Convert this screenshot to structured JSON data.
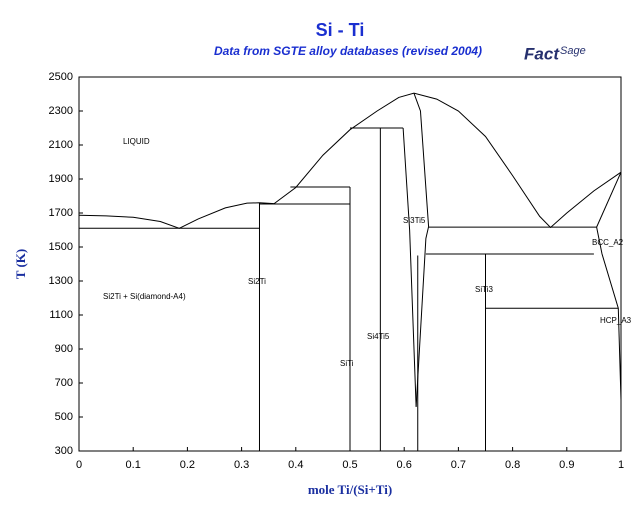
{
  "chart_data": {
    "type": "line",
    "title": "Si - Ti",
    "subtitle": "Data from SGTE alloy databases (revised 2004)",
    "logo": {
      "main": "Fact",
      "sup": "Sage"
    },
    "xlabel": "mole Ti/(Si+Ti)",
    "ylabel": "T (K)",
    "xlim": [
      0,
      1
    ],
    "ylim": [
      300,
      2500
    ],
    "xticks": [
      0,
      0.1,
      0.2,
      0.3,
      0.4,
      0.5,
      0.6,
      0.7,
      0.8,
      0.9,
      1
    ],
    "yticks": [
      300,
      500,
      700,
      900,
      1100,
      1300,
      1500,
      1700,
      1900,
      2100,
      2300,
      2500
    ],
    "color": "#000000",
    "annotations": [
      "LIQUID",
      "Si2Ti + Si(diamond-A4)",
      "Si2Ti",
      "SiTi",
      "Si4Ti5",
      "Si3Ti5",
      "SiTi3",
      "BCC_A2",
      "HCP_A3"
    ],
    "series": [
      {
        "x": [
          0,
          0.05,
          0.1,
          0.15,
          0.185,
          0.22,
          0.27,
          0.31,
          0.333,
          0.36,
          0.4,
          0.45,
          0.5,
          0.55,
          0.59,
          0.618,
          0.66,
          0.7,
          0.75,
          0.8,
          0.85,
          0.87,
          0.9,
          0.95,
          1
        ],
        "y": [
          1687,
          1683,
          1675,
          1650,
          1610,
          1665,
          1730,
          1758,
          1760,
          1755,
          1850,
          2040,
          2190,
          2300,
          2380,
          2405,
          2370,
          2300,
          2150,
          1920,
          1680,
          1615,
          1700,
          1830,
          1940
        ]
      },
      {
        "x": [
          0,
          0.333
        ],
        "y": [
          1610,
          1610
        ]
      },
      {
        "x": [
          0.333,
          0.333
        ],
        "y": [
          300,
          1760
        ]
      },
      {
        "x": [
          0.333,
          0.5
        ],
        "y": [
          1753,
          1753
        ]
      },
      {
        "x": [
          0.39,
          0.5
        ],
        "y": [
          1853,
          1853
        ]
      },
      {
        "x": [
          0.5,
          0.5
        ],
        "y": [
          300,
          1853
        ]
      },
      {
        "x": [
          0.5,
          0.598
        ],
        "y": [
          2200,
          2200
        ]
      },
      {
        "x": [
          0.556,
          0.556
        ],
        "y": [
          300,
          2200
        ]
      },
      {
        "x": [
          0.598,
          0.61,
          0.622
        ],
        "y": [
          2200,
          1600,
          560
        ]
      },
      {
        "x": [
          0.622,
          0.64,
          0.645,
          0.63,
          0.618
        ],
        "y": [
          560,
          1550,
          1620,
          2300,
          2405
        ]
      },
      {
        "x": [
          0.625,
          0.625
        ],
        "y": [
          300,
          1450
        ]
      },
      {
        "x": [
          0.645,
          0.955
        ],
        "y": [
          1617,
          1617
        ]
      },
      {
        "x": [
          0.64,
          0.95
        ],
        "y": [
          1459,
          1459
        ]
      },
      {
        "x": [
          0.75,
          0.75
        ],
        "y": [
          300,
          1459
        ]
      },
      {
        "x": [
          0.75,
          0.995
        ],
        "y": [
          1140,
          1140
        ]
      },
      {
        "x": [
          0.955,
          0.965,
          0.995,
          1
        ],
        "y": [
          1617,
          1459,
          1140,
          600
        ]
      },
      {
        "x": [
          0.955,
          1
        ],
        "y": [
          1617,
          1940
        ]
      }
    ]
  }
}
